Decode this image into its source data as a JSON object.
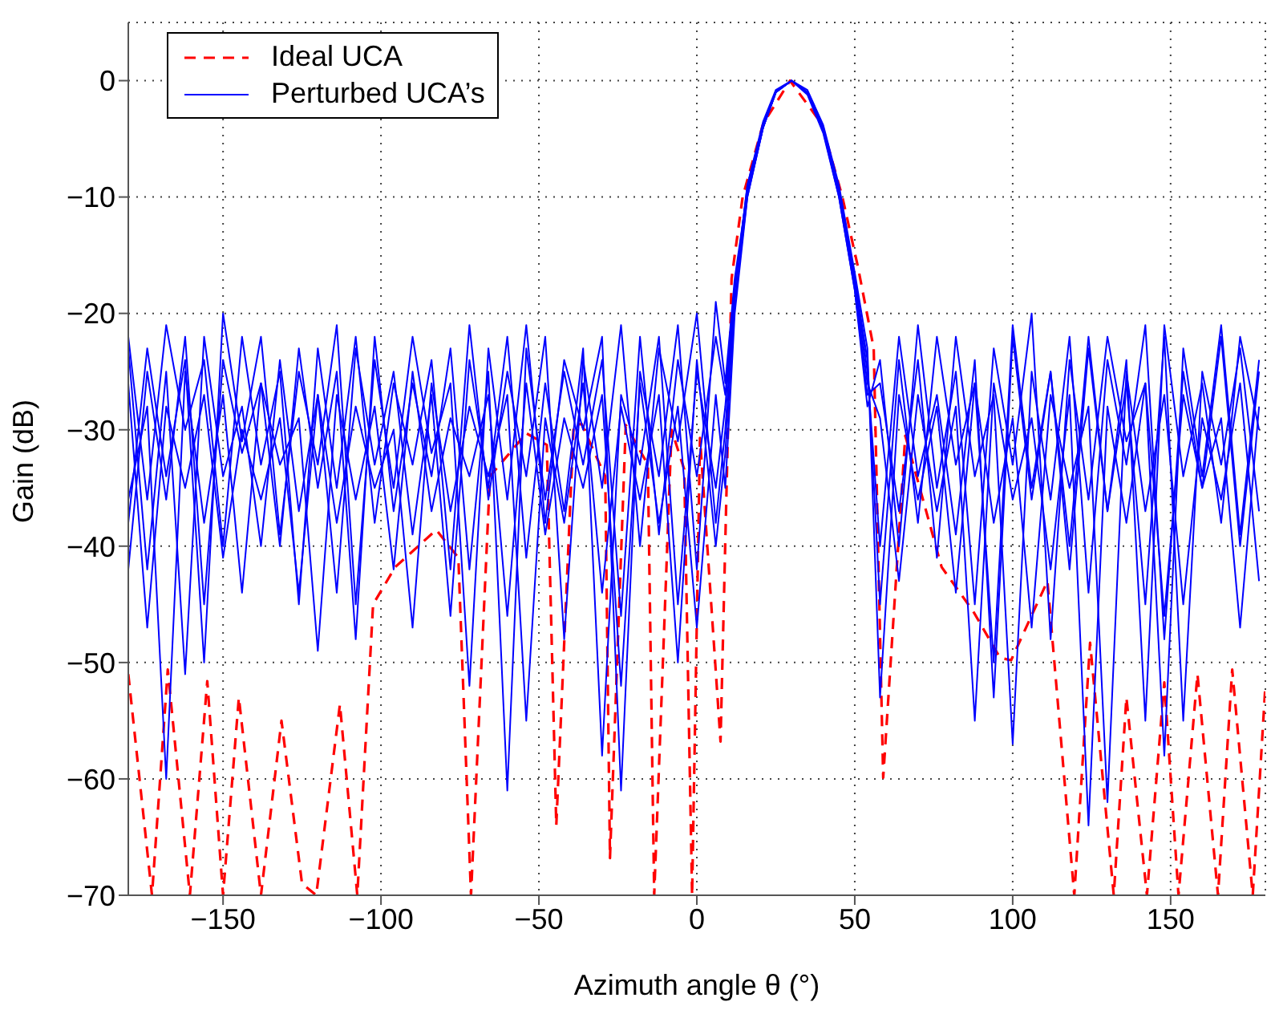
{
  "chart_data": {
    "type": "line",
    "xlabel": "Azimuth angle θ (°)",
    "ylabel": "Gain (dB)",
    "xlim": [
      -180,
      180
    ],
    "xticks": [
      -150,
      -100,
      -50,
      0,
      50,
      100,
      150
    ],
    "ylim": [
      -70,
      5
    ],
    "yticks": [
      -70,
      -60,
      -50,
      -40,
      -30,
      -20,
      -10,
      0
    ],
    "grid": true,
    "legend": "top left",
    "x": [
      -180,
      -174,
      -168,
      -162,
      -156,
      -150,
      -144,
      -138,
      -132,
      -126,
      -120,
      -114,
      -108,
      -102,
      -96,
      -90,
      -84,
      -78,
      -72,
      -66,
      -60,
      -54,
      -48,
      -42,
      -36,
      -30,
      -24,
      -18,
      -12,
      -6,
      0,
      6,
      9,
      12,
      16,
      21,
      25,
      30,
      35,
      40,
      45,
      50,
      54,
      58,
      64,
      70,
      76,
      82,
      88,
      94,
      100,
      106,
      112,
      118,
      124,
      130,
      136,
      142,
      148,
      154,
      160,
      166,
      172,
      178
    ],
    "series": [
      {
        "name": "Ideal UCA",
        "color": "#ff0000",
        "line_style": "dashed",
        "x": [
          -180,
          -172.5,
          -167.5,
          -160.5,
          -155,
          -150,
          -145,
          -138,
          -131.5,
          -125,
          -120.5,
          -113,
          -107.5,
          -102.5,
          -95.5,
          -82.5,
          -75.5,
          -71.5,
          -65.5,
          -54,
          -47.5,
          -44.5,
          -39,
          -36.5,
          -29,
          -27.5,
          -22.5,
          -15.5,
          -13.5,
          -8,
          -4,
          -1.5,
          1,
          7.5,
          11,
          14.5,
          21,
          29.5,
          39.5,
          46,
          51,
          56,
          59,
          66,
          77.5,
          87.5,
          96,
          99.5,
          111,
          119.5,
          124.5,
          132,
          136,
          142.5,
          148,
          152.5,
          158.5,
          165,
          169.5,
          176,
          180
        ],
        "values": [
          -51,
          -70,
          -50.6,
          -70,
          -51.6,
          -70,
          -53,
          -70,
          -55,
          -69,
          -70,
          -53.6,
          -70,
          -45,
          -41.8,
          -38.6,
          -41,
          -70,
          -34,
          -30.3,
          -31.3,
          -64,
          -29.6,
          -29.5,
          -34,
          -66.8,
          -29.6,
          -33,
          -70,
          -30,
          -33.4,
          -70,
          -30.7,
          -56.8,
          -17,
          -10,
          -3.7,
          0,
          -3.7,
          -9.9,
          -16,
          -23,
          -59.9,
          -30.5,
          -41.8,
          -45.6,
          -49.6,
          -49.8,
          -43,
          -70,
          -48.3,
          -70,
          -53,
          -70,
          -51.7,
          -70,
          -51,
          -70,
          -50.6,
          -70,
          -52
        ]
      },
      {
        "name": "Perturbed UCA’s",
        "color": "#0000ff",
        "line_style": "solid",
        "values": [
          -22,
          -36,
          -21,
          -30,
          -24,
          -40,
          -22,
          -33,
          -25,
          -45,
          -23,
          -35,
          -22,
          -38,
          -26,
          -33,
          -24,
          -42,
          -21,
          -36,
          -25,
          -34,
          -22,
          -48,
          -24,
          -35,
          -21,
          -40,
          -23,
          -31,
          -20,
          -38,
          -30,
          -18,
          -9,
          -3.5,
          -0.8,
          0,
          -1,
          -4,
          -9.5,
          -17,
          -24,
          -45,
          -24,
          -38,
          -22,
          -33,
          -26,
          -50,
          -21,
          -35,
          -25,
          -40,
          -22,
          -37,
          -24,
          -55,
          -21,
          -34,
          -26,
          -38,
          -22,
          -30
        ]
      },
      {
        "color": "#0000ff",
        "line_style": "solid",
        "values": [
          -38,
          -23,
          -34,
          -24,
          -50,
          -20,
          -31,
          -22,
          -39,
          -25,
          -33,
          -21,
          -45,
          -24,
          -35,
          -22,
          -32,
          -26,
          -52,
          -23,
          -36,
          -21,
          -38,
          -24,
          -30,
          -22,
          -61,
          -25,
          -34,
          -21,
          -42,
          -19,
          -26,
          -17,
          -9.5,
          -4,
          -1,
          0,
          -1.2,
          -4.5,
          -10,
          -18,
          -28,
          -24,
          -40,
          -21,
          -35,
          -25,
          -45,
          -23,
          -33,
          -20,
          -48,
          -24,
          -36,
          -22,
          -31,
          -26,
          -58,
          -23,
          -34,
          -21,
          -39,
          -24
        ]
      },
      {
        "color": "#0000ff",
        "line_style": "solid",
        "values": [
          -26,
          -47,
          -28,
          -35,
          -27,
          -41,
          -30,
          -36,
          -29,
          -44,
          -27,
          -38,
          -28,
          -35,
          -30,
          -47,
          -26,
          -37,
          -28,
          -34,
          -27,
          -55,
          -29,
          -38,
          -26,
          -44,
          -28,
          -36,
          -27,
          -50,
          -24,
          -40,
          -32,
          -19,
          -10,
          -4,
          -1,
          0,
          -0.8,
          -3.8,
          -9,
          -16.5,
          -23,
          -53,
          -27,
          -36,
          -28,
          -44,
          -26,
          -38,
          -29,
          -47,
          -27,
          -35,
          -28,
          -62,
          -25,
          -37,
          -27,
          -45,
          -29,
          -36,
          -26,
          -43
        ]
      },
      {
        "color": "#0000ff",
        "line_style": "solid",
        "values": [
          -36,
          -28,
          -60,
          -25,
          -38,
          -27,
          -44,
          -26,
          -33,
          -29,
          -49,
          -27,
          -36,
          -28,
          -42,
          -25,
          -37,
          -29,
          -34,
          -27,
          -46,
          -26,
          -39,
          -29,
          -35,
          -27,
          -52,
          -26,
          -38,
          -28,
          -47,
          -27,
          -35,
          -20,
          -10,
          -4,
          -1,
          0,
          -1,
          -4,
          -9.8,
          -17.5,
          -26,
          -29,
          -43,
          -27,
          -37,
          -28,
          -55,
          -26,
          -36,
          -29,
          -42,
          -27,
          -64,
          -28,
          -38,
          -26,
          -46,
          -27,
          -35,
          -29,
          -47,
          -28
        ]
      },
      {
        "color": "#0000ff",
        "line_style": "solid",
        "values": [
          -23,
          -42,
          -25,
          -51,
          -22,
          -34,
          -28,
          -40,
          -24,
          -37,
          -27,
          -44,
          -23,
          -33,
          -25,
          -39,
          -27,
          -46,
          -24,
          -35,
          -22,
          -41,
          -26,
          -37,
          -23,
          -58,
          -27,
          -33,
          -22,
          -45,
          -25,
          -35,
          -28,
          -18,
          -9,
          -3.8,
          -0.9,
          0,
          -1.1,
          -4.2,
          -9.6,
          -17,
          -25,
          -40,
          -22,
          -34,
          -27,
          -39,
          -24,
          -53,
          -22,
          -36,
          -25,
          -42,
          -23,
          -37,
          -26,
          -45,
          -22,
          -55,
          -25,
          -33,
          -23,
          -37
        ]
      },
      {
        "color": "#0000ff",
        "line_style": "solid",
        "values": [
          -42,
          -25,
          -36,
          -22,
          -45,
          -24,
          -32,
          -26,
          -40,
          -23,
          -35,
          -25,
          -48,
          -22,
          -37,
          -26,
          -34,
          -23,
          -42,
          -25,
          -61,
          -23,
          -36,
          -25,
          -33,
          -24,
          -46,
          -22,
          -39,
          -24,
          -34,
          -22,
          -27,
          -17.5,
          -9.8,
          -4,
          -1,
          0,
          -1,
          -4.3,
          -10,
          -18,
          -27,
          -26,
          -37,
          -24,
          -41,
          -22,
          -34,
          -27,
          -57,
          -25,
          -36,
          -22,
          -44,
          -24,
          -33,
          -21,
          -48,
          -25,
          -35,
          -22,
          -40,
          -25
        ]
      }
    ]
  }
}
